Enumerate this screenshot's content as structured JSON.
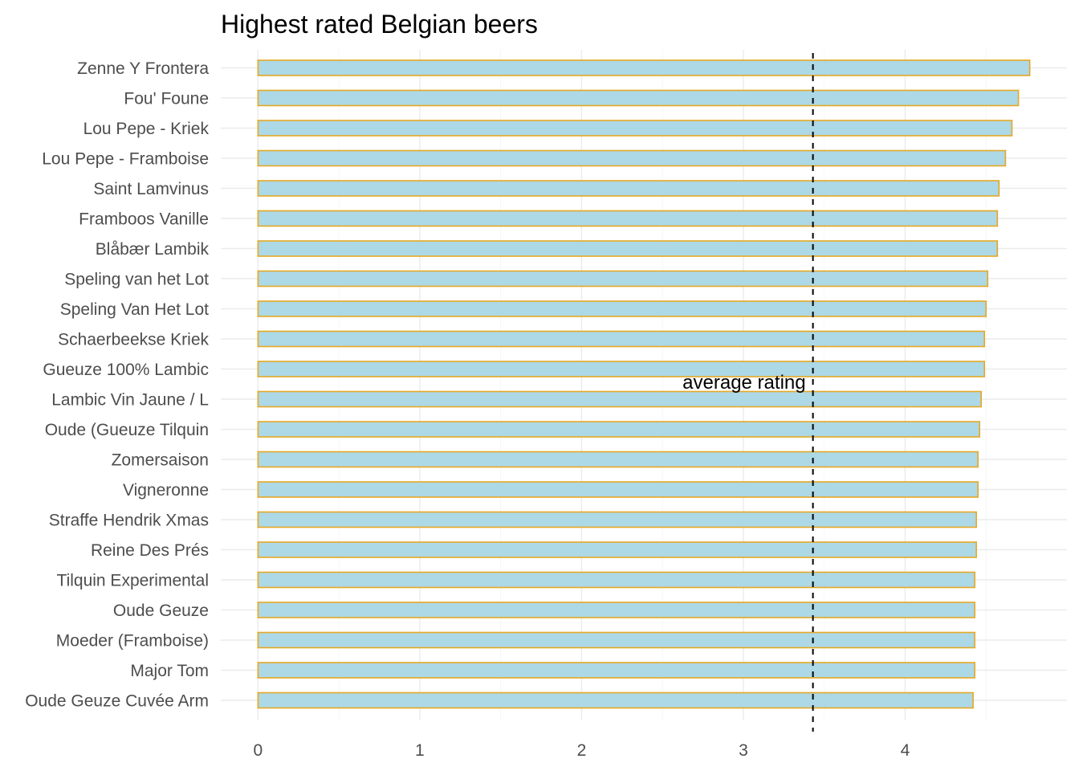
{
  "chart_data": {
    "type": "bar",
    "orientation": "horizontal",
    "title": "Highest rated Belgian beers",
    "xlabel": "",
    "ylabel": "",
    "categories": [
      "Zenne Y Frontera",
      "Fou' Foune",
      "Lou Pepe - Kriek",
      "Lou Pepe - Framboise",
      "Saint Lamvinus",
      "Framboos Vanille",
      "Blåbær Lambik",
      "Speling van het Lot",
      "Speling Van Het Lot",
      "Schaerbeekse Kriek",
      "Gueuze 100% Lambic",
      "Lambic Vin Jaune / L",
      "Oude (Gueuze Tilquin",
      "Zomersaison",
      "Vigneronne",
      "Straffe Hendrik Xmas",
      "Reine Des Prés",
      "Tilquin Experimental",
      "Oude Geuze",
      "Moeder (Framboise)",
      "Major Tom",
      "Oude Geuze Cuvée Arm"
    ],
    "values": [
      4.77,
      4.7,
      4.66,
      4.62,
      4.58,
      4.57,
      4.57,
      4.51,
      4.5,
      4.49,
      4.49,
      4.47,
      4.46,
      4.45,
      4.45,
      4.44,
      4.44,
      4.43,
      4.43,
      4.43,
      4.43,
      4.42
    ],
    "xlim": [
      -0.23,
      5.0
    ],
    "xticks": [
      0,
      1,
      2,
      3,
      4
    ],
    "xtick_labels": [
      "0",
      "1",
      "2",
      "3",
      "4"
    ],
    "reference_line": {
      "value": 3.43,
      "style": "dashed",
      "label": "average rating"
    },
    "grid": true,
    "legend": "none",
    "colors": {
      "bar_fill": "#add8e6",
      "bar_outline": "#e5a823",
      "reference_line": "#000000"
    }
  }
}
